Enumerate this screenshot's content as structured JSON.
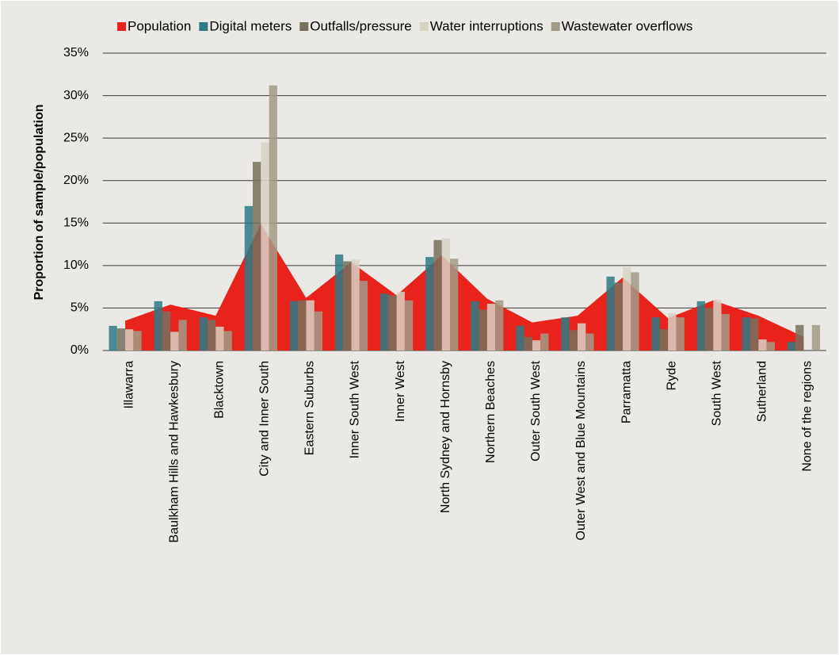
{
  "chart_data": {
    "type": "bar",
    "y_label": "Proportion of sample/population",
    "categories": [
      "Illawarra",
      "Baulkham Hills and Hawkesbury",
      "Blacktown",
      "City and Inner South",
      "Eastern Suburbs",
      "Inner South West",
      "Inner West",
      "North Sydney and Hornsby",
      "Northern Beaches",
      "Outer South West",
      "Outer West and Blue Mountains",
      "Parramatta",
      "Ryde",
      "South West",
      "Sutherland",
      "None of the regions"
    ],
    "series": [
      {
        "name": "Population",
        "color": "#e8231b",
        "kind": "area",
        "values": [
          3.5,
          5.4,
          4.1,
          14.9,
          6.2,
          10.4,
          6.5,
          11.2,
          6.1,
          3.3,
          4.1,
          8.6,
          3.8,
          5.9,
          4.1,
          1.6
        ]
      },
      {
        "name": "Digital meters",
        "color": "#2b7a84",
        "values": [
          2.9,
          5.8,
          3.9,
          17.0,
          5.8,
          11.3,
          6.7,
          11.0,
          5.8,
          2.9,
          3.9,
          8.7,
          3.9,
          5.8,
          3.9,
          1.0
        ]
      },
      {
        "name": "Outfalls/pressure",
        "color": "#77705c",
        "values": [
          2.6,
          4.6,
          3.6,
          22.2,
          5.9,
          10.5,
          6.5,
          13.0,
          4.8,
          1.6,
          2.4,
          8.0,
          2.5,
          5.0,
          3.8,
          3.0
        ]
      },
      {
        "name": "Water interruptions",
        "color": "#d7d2c4",
        "values": [
          2.5,
          2.2,
          2.8,
          24.5,
          5.9,
          10.7,
          6.9,
          13.2,
          5.5,
          1.2,
          3.2,
          9.8,
          4.4,
          6.0,
          1.3,
          0
        ]
      },
      {
        "name": "Wastewater overflows",
        "color": "#a29a87",
        "values": [
          2.3,
          3.6,
          2.3,
          31.2,
          4.6,
          8.2,
          5.9,
          10.8,
          5.9,
          2.0,
          2.0,
          9.2,
          3.9,
          4.3,
          1.0,
          3.0
        ]
      }
    ],
    "ylim": [
      0,
      35
    ],
    "yticks": [
      {
        "value": 0,
        "label": "0%"
      },
      {
        "value": 5,
        "label": "5%"
      },
      {
        "value": 10,
        "label": "10%"
      },
      {
        "value": 15,
        "label": "15%"
      },
      {
        "value": 20,
        "label": "20%"
      },
      {
        "value": 25,
        "label": "25%"
      },
      {
        "value": 30,
        "label": "30%"
      },
      {
        "value": 35,
        "label": "35%"
      }
    ],
    "grid": true,
    "legend": "top"
  }
}
